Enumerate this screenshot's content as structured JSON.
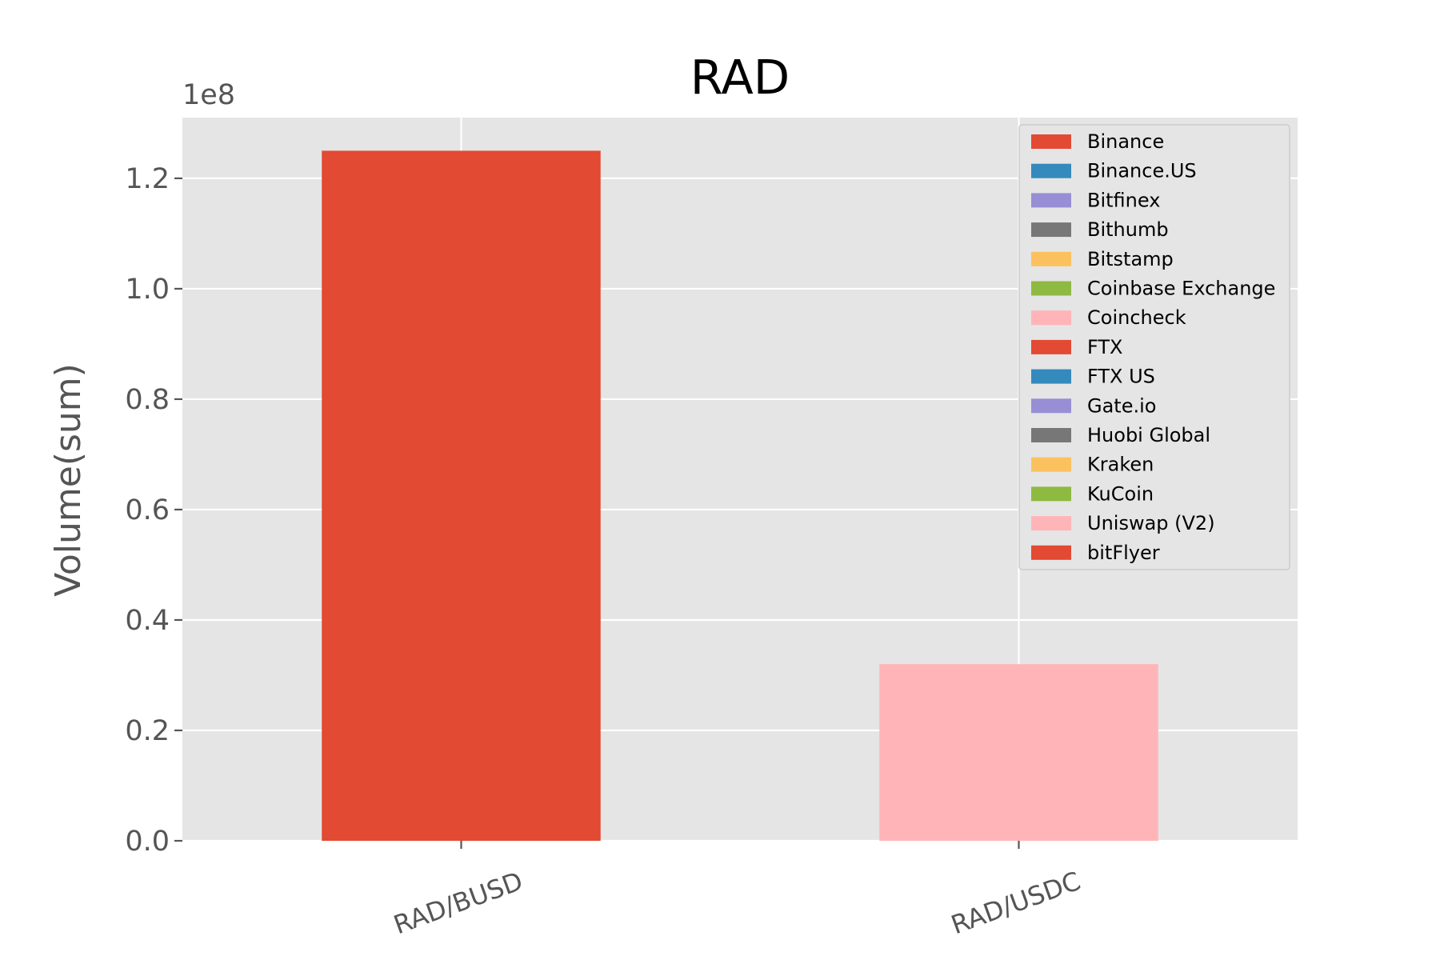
{
  "chart_data": {
    "type": "bar",
    "title": "RAD",
    "xlabel": "",
    "ylabel": "Volume(sum)",
    "y_offset_text": "1e8",
    "ylim": [
      0,
      131000000
    ],
    "yticks": [
      0,
      20000000,
      40000000,
      60000000,
      80000000,
      100000000,
      120000000
    ],
    "ytick_labels": [
      "0.0",
      "0.2",
      "0.4",
      "0.6",
      "0.8",
      "1.0",
      "1.2"
    ],
    "categories": [
      "RAD/BUSD",
      "RAD/USDC"
    ],
    "series": [
      {
        "name": "Binance",
        "color": "#E24A33",
        "values": [
          125000000,
          0
        ]
      },
      {
        "name": "Binance.US",
        "color": "#348ABD",
        "values": [
          0,
          0
        ]
      },
      {
        "name": "Bitfinex",
        "color": "#988ED5",
        "values": [
          0,
          0
        ]
      },
      {
        "name": "Bithumb",
        "color": "#777777",
        "values": [
          0,
          0
        ]
      },
      {
        "name": "Bitstamp",
        "color": "#FBC15E",
        "values": [
          0,
          0
        ]
      },
      {
        "name": "Coinbase Exchange",
        "color": "#8EBA42",
        "values": [
          0,
          0
        ]
      },
      {
        "name": "Coincheck",
        "color": "#FFB5B8",
        "values": [
          0,
          32000000
        ]
      },
      {
        "name": "FTX",
        "color": "#E24A33",
        "values": [
          0,
          0
        ]
      },
      {
        "name": "FTX US",
        "color": "#348ABD",
        "values": [
          0,
          0
        ]
      },
      {
        "name": "Gate.io",
        "color": "#988ED5",
        "values": [
          0,
          0
        ]
      },
      {
        "name": "Huobi Global",
        "color": "#777777",
        "values": [
          0,
          0
        ]
      },
      {
        "name": "Kraken",
        "color": "#FBC15E",
        "values": [
          0,
          0
        ]
      },
      {
        "name": "KuCoin",
        "color": "#8EBA42",
        "values": [
          0,
          0
        ]
      },
      {
        "name": "Uniswap (V2)",
        "color": "#FFB5B8",
        "values": [
          0,
          0
        ]
      },
      {
        "name": "bitFlyer",
        "color": "#E24A33",
        "values": [
          0,
          0
        ]
      }
    ],
    "grid": true,
    "legend_position": "top-right",
    "background_color": "#E5E5E5"
  }
}
